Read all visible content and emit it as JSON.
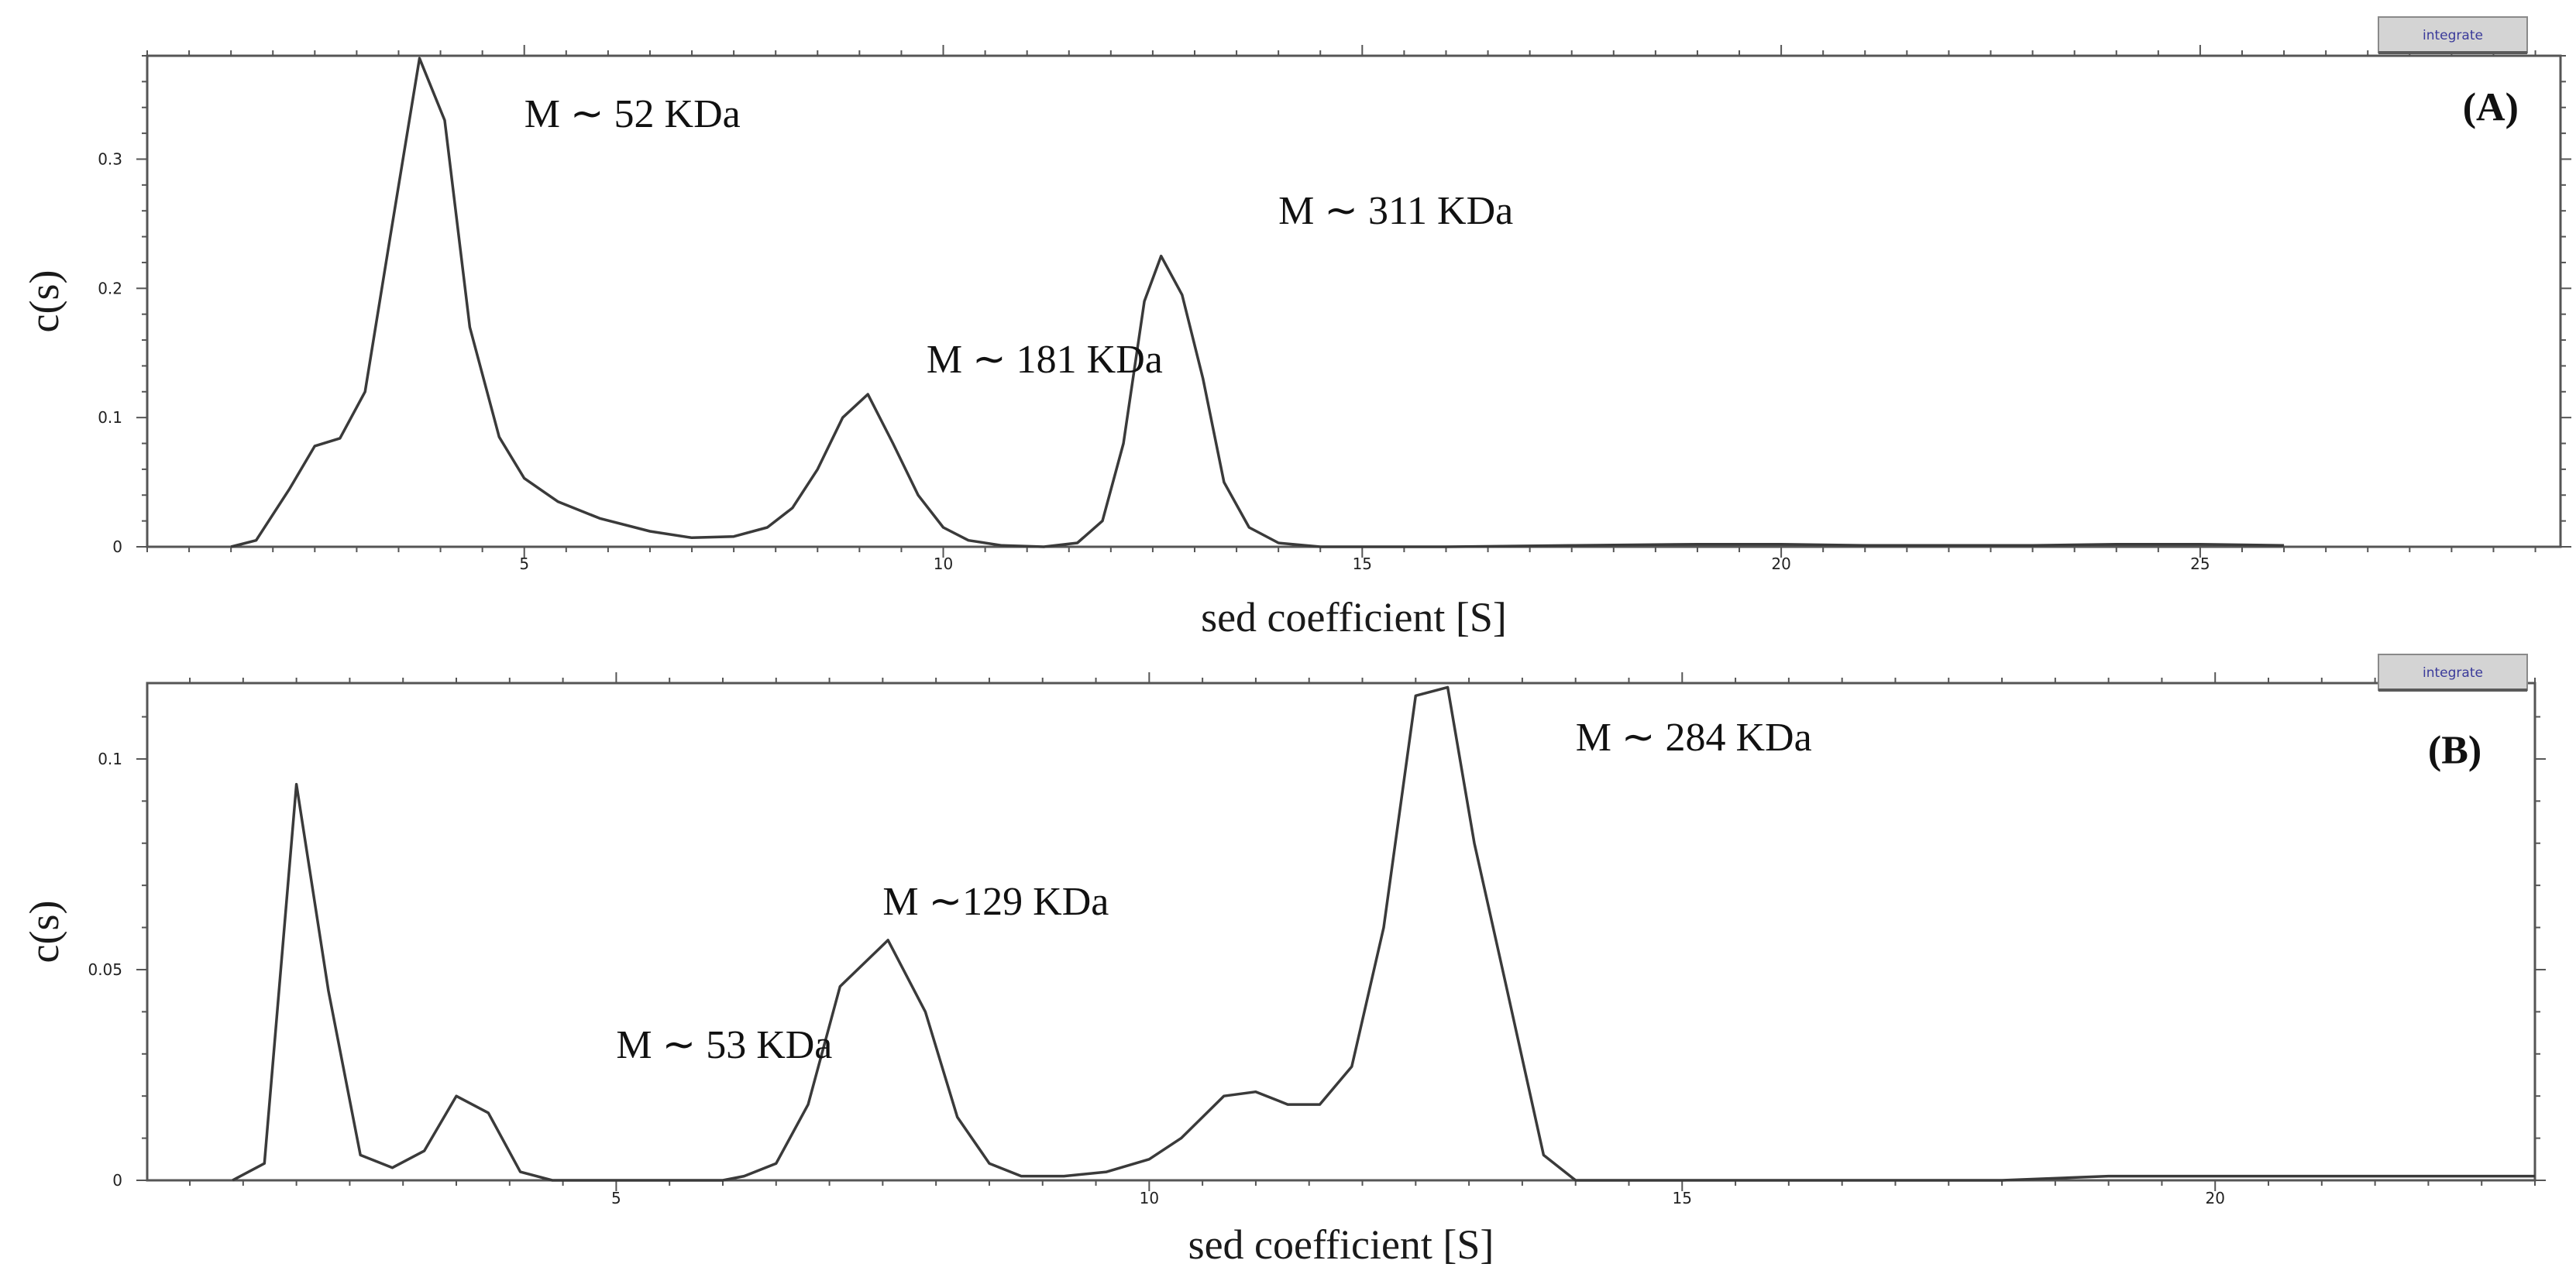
{
  "chart_data": [
    {
      "type": "line",
      "panel_label": "(A)",
      "button_label": "integrate",
      "xlabel": "sed coefficient [S]",
      "ylabel": "c(s)",
      "xlim": [
        0.5,
        29.3
      ],
      "ylim": [
        0,
        0.38
      ],
      "xticks": [
        5,
        10,
        15,
        20,
        25
      ],
      "yticks": [
        0,
        0.1,
        0.2,
        0.3
      ],
      "annotations": [
        {
          "text": "M ∼ 52   KDa",
          "x": 5.0,
          "y": 0.325
        },
        {
          "text": "M ∼ 181 KDa",
          "x": 9.8,
          "y": 0.135
        },
        {
          "text": "M ∼ 311 KDa",
          "x": 14.0,
          "y": 0.25
        },
        {
          "text": "(A)",
          "x": 28.8,
          "y": 0.33
        }
      ],
      "series": [
        {
          "name": "c(s)",
          "x": [
            1.5,
            1.8,
            2.2,
            2.5,
            2.8,
            3.1,
            3.4,
            3.75,
            4.05,
            4.35,
            4.7,
            5.0,
            5.4,
            5.9,
            6.5,
            7.0,
            7.5,
            7.9,
            8.2,
            8.5,
            8.8,
            9.1,
            9.4,
            9.7,
            10.0,
            10.3,
            10.7,
            11.2,
            11.6,
            11.9,
            12.15,
            12.4,
            12.6,
            12.85,
            13.1,
            13.35,
            13.65,
            14.0,
            14.5,
            15.0,
            16.0,
            17.5,
            19.0,
            20.0,
            21.0,
            23.0,
            24.0,
            25.0,
            26.0
          ],
          "y": [
            0.0,
            0.005,
            0.045,
            0.078,
            0.084,
            0.12,
            0.24,
            0.378,
            0.33,
            0.17,
            0.085,
            0.053,
            0.035,
            0.022,
            0.012,
            0.007,
            0.008,
            0.015,
            0.03,
            0.06,
            0.1,
            0.118,
            0.08,
            0.04,
            0.015,
            0.005,
            0.001,
            0.0,
            0.003,
            0.02,
            0.08,
            0.19,
            0.225,
            0.195,
            0.13,
            0.05,
            0.015,
            0.003,
            0.0,
            0.0,
            0.0,
            0.001,
            0.002,
            0.002,
            0.001,
            0.001,
            0.002,
            0.002,
            0.001
          ]
        }
      ]
    },
    {
      "type": "line",
      "panel_label": "(B)",
      "button_label": "integrate",
      "xlabel": "sed coefficient [S]",
      "ylabel": "c(s)",
      "xlim": [
        0.6,
        23.0
      ],
      "ylim": [
        0,
        0.118
      ],
      "xticks": [
        5,
        10,
        15,
        20
      ],
      "yticks": [
        0,
        0.05,
        0.1
      ],
      "annotations": [
        {
          "text": "M ∼ 284 KDa",
          "x": 14.0,
          "y": 0.102
        },
        {
          "text": "M ∼129 KDa",
          "x": 7.5,
          "y": 0.063
        },
        {
          "text": "M ∼ 53     KDa",
          "x": 5.0,
          "y": 0.029
        },
        {
          "text": "(B)",
          "x": 22.5,
          "y": 0.099
        }
      ],
      "series": [
        {
          "name": "c(s)",
          "x": [
            1.4,
            1.7,
            2.0,
            2.3,
            2.6,
            2.9,
            3.2,
            3.5,
            3.8,
            4.1,
            4.4,
            4.7,
            5.0,
            5.5,
            6.0,
            6.2,
            6.5,
            6.8,
            7.1,
            7.55,
            7.9,
            8.2,
            8.5,
            8.8,
            9.2,
            9.6,
            10.0,
            10.3,
            10.7,
            11.0,
            11.3,
            11.6,
            11.9,
            12.2,
            12.5,
            12.8,
            13.05,
            13.35,
            13.7,
            14.0,
            14.5,
            16.0,
            18.0,
            19.0,
            20.0,
            21.0,
            22.0,
            23.0
          ],
          "y": [
            0.0,
            0.004,
            0.094,
            0.045,
            0.006,
            0.003,
            0.007,
            0.02,
            0.016,
            0.002,
            0.0,
            0.0,
            0.0,
            0.0,
            0.0,
            0.001,
            0.004,
            0.018,
            0.046,
            0.057,
            0.04,
            0.015,
            0.004,
            0.001,
            0.001,
            0.002,
            0.005,
            0.01,
            0.02,
            0.021,
            0.018,
            0.018,
            0.027,
            0.06,
            0.115,
            0.117,
            0.08,
            0.046,
            0.006,
            0.0,
            0.0,
            0.0,
            0.0,
            0.001,
            0.001,
            0.001,
            0.001,
            0.001
          ]
        }
      ]
    }
  ]
}
